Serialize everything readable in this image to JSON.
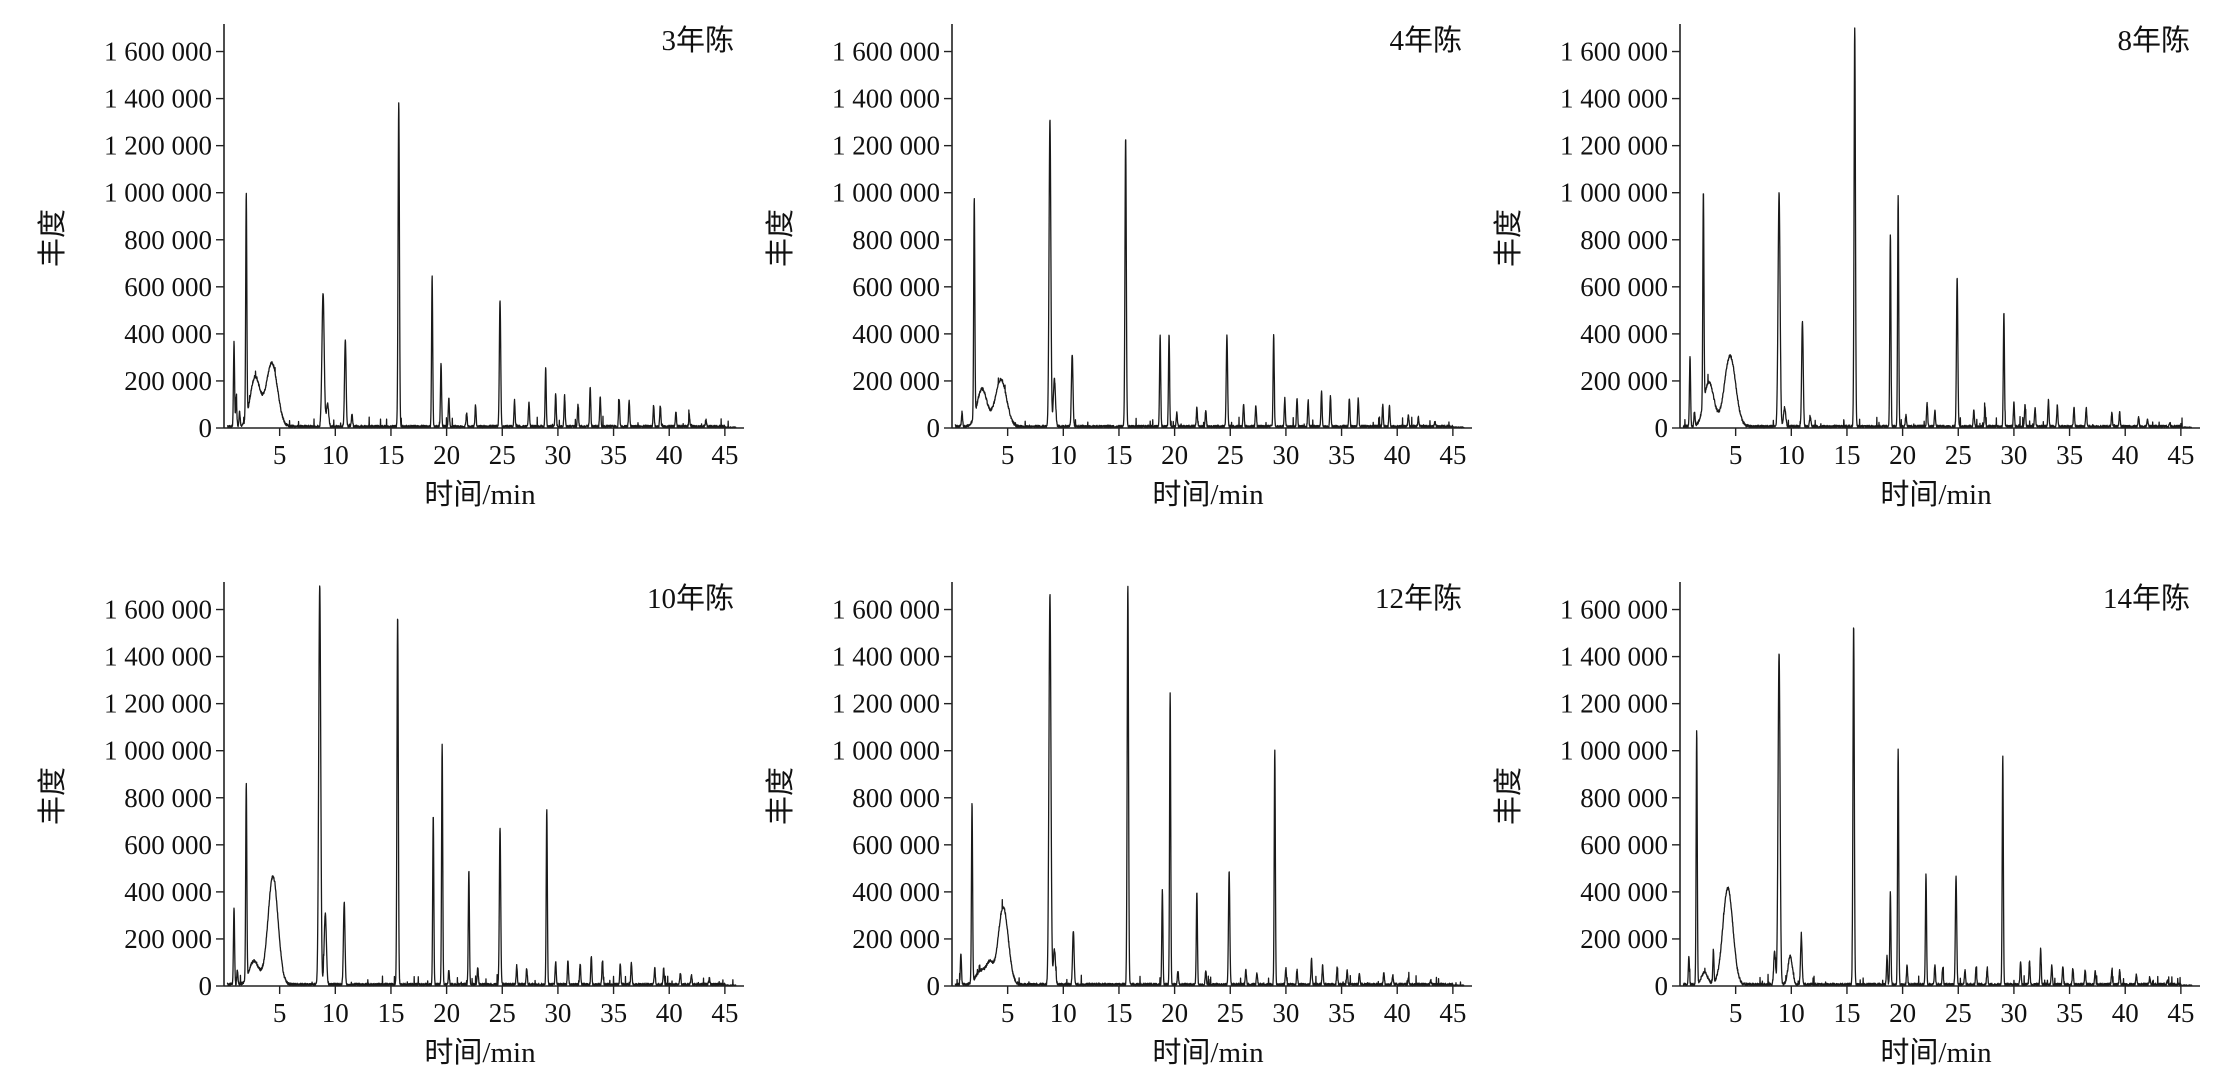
{
  "chart_data": [
    {
      "type": "line",
      "title": "3年陈",
      "xlabel": "时间/min",
      "ylabel": "丰度",
      "xlim": [
        0,
        46
      ],
      "ylim": [
        0,
        1700000
      ],
      "xticks": [
        5,
        10,
        15,
        20,
        25,
        30,
        35,
        40,
        45
      ],
      "xtick_labels": [
        "5",
        "10",
        "15",
        "20",
        "25",
        "30",
        "35",
        "40",
        "45"
      ],
      "yticks": [
        0,
        200000,
        400000,
        600000,
        800000,
        1000000,
        1200000,
        1400000,
        1600000
      ],
      "ytick_labels": [
        "0",
        "200 000",
        "400 000",
        "600 000",
        "800 000",
        "1 000 000",
        "1 200 000",
        "1 400 000",
        "1 600 000"
      ],
      "peaks": [
        [
          0.9,
          360000,
          0.05
        ],
        [
          1.1,
          130000,
          0.05
        ],
        [
          1.4,
          60000,
          0.05
        ],
        [
          2.0,
          950000,
          0.05
        ],
        [
          2.8,
          210000,
          0.45
        ],
        [
          4.3,
          270000,
          0.5
        ],
        [
          8.9,
          570000,
          0.1
        ],
        [
          9.3,
          100000,
          0.1
        ],
        [
          10.9,
          370000,
          0.07
        ],
        [
          11.5,
          50000,
          0.06
        ],
        [
          15.7,
          1380000,
          0.06
        ],
        [
          18.7,
          640000,
          0.05
        ],
        [
          19.5,
          270000,
          0.05
        ],
        [
          20.2,
          120000,
          0.05
        ],
        [
          21.8,
          60000,
          0.05
        ],
        [
          22.6,
          90000,
          0.05
        ],
        [
          24.8,
          540000,
          0.06
        ],
        [
          26.1,
          110000,
          0.05
        ],
        [
          27.4,
          100000,
          0.05
        ],
        [
          28.9,
          250000,
          0.05
        ],
        [
          29.8,
          140000,
          0.05
        ],
        [
          30.6,
          130000,
          0.05
        ],
        [
          31.8,
          90000,
          0.05
        ],
        [
          32.9,
          170000,
          0.05
        ],
        [
          33.8,
          130000,
          0.05
        ],
        [
          35.5,
          120000,
          0.05
        ],
        [
          36.4,
          110000,
          0.05
        ],
        [
          38.6,
          90000,
          0.05
        ],
        [
          39.2,
          90000,
          0.05
        ],
        [
          40.6,
          60000,
          0.05
        ],
        [
          41.8,
          50000,
          0.05
        ],
        [
          43.3,
          30000,
          0.05
        ]
      ]
    },
    {
      "type": "line",
      "title": "4年陈",
      "xlabel": "时间/min",
      "ylabel": "丰度",
      "xlim": [
        0,
        46
      ],
      "ylim": [
        0,
        1700000
      ],
      "xticks": [
        5,
        10,
        15,
        20,
        25,
        30,
        35,
        40,
        45
      ],
      "xtick_labels": [
        "5",
        "10",
        "15",
        "20",
        "25",
        "30",
        "35",
        "40",
        "45"
      ],
      "yticks": [
        0,
        200000,
        400000,
        600000,
        800000,
        1000000,
        1200000,
        1400000,
        1600000
      ],
      "ytick_labels": [
        "0",
        "200 000",
        "400 000",
        "600 000",
        "800 000",
        "1 000 000",
        "1 200 000",
        "1 400 000",
        "1 600 000"
      ],
      "peaks": [
        [
          0.9,
          60000,
          0.05
        ],
        [
          2.0,
          930000,
          0.05
        ],
        [
          2.7,
          160000,
          0.45
        ],
        [
          4.4,
          200000,
          0.5
        ],
        [
          8.8,
          1310000,
          0.08
        ],
        [
          9.2,
          200000,
          0.1
        ],
        [
          10.8,
          310000,
          0.07
        ],
        [
          15.6,
          1230000,
          0.06
        ],
        [
          18.7,
          390000,
          0.05
        ],
        [
          19.5,
          390000,
          0.05
        ],
        [
          20.2,
          60000,
          0.05
        ],
        [
          22.0,
          80000,
          0.05
        ],
        [
          22.8,
          70000,
          0.05
        ],
        [
          24.7,
          390000,
          0.06
        ],
        [
          26.2,
          100000,
          0.05
        ],
        [
          27.3,
          90000,
          0.05
        ],
        [
          28.9,
          390000,
          0.05
        ],
        [
          29.9,
          120000,
          0.05
        ],
        [
          31.0,
          120000,
          0.05
        ],
        [
          32.0,
          110000,
          0.05
        ],
        [
          33.2,
          150000,
          0.05
        ],
        [
          34.0,
          130000,
          0.05
        ],
        [
          35.7,
          120000,
          0.05
        ],
        [
          36.5,
          120000,
          0.05
        ],
        [
          38.7,
          90000,
          0.05
        ],
        [
          39.3,
          90000,
          0.05
        ],
        [
          41.0,
          50000,
          0.05
        ],
        [
          41.9,
          40000,
          0.05
        ],
        [
          43.4,
          20000,
          0.05
        ]
      ]
    },
    {
      "type": "line",
      "title": "8年陈",
      "xlabel": "时间/min",
      "ylabel": "丰度",
      "xlim": [
        0,
        46
      ],
      "ylim": [
        0,
        1700000
      ],
      "xticks": [
        5,
        10,
        15,
        20,
        25,
        30,
        35,
        40,
        45
      ],
      "xtick_labels": [
        "5",
        "10",
        "15",
        "20",
        "25",
        "30",
        "35",
        "40",
        "45"
      ],
      "yticks": [
        0,
        200000,
        400000,
        600000,
        800000,
        1000000,
        1200000,
        1400000,
        1600000
      ],
      "ytick_labels": [
        "0",
        "200 000",
        "400 000",
        "600 000",
        "800 000",
        "1 000 000",
        "1 200 000",
        "1 400 000",
        "1 600 000"
      ],
      "peaks": [
        [
          0.9,
          300000,
          0.05
        ],
        [
          1.3,
          60000,
          0.05
        ],
        [
          2.1,
          900000,
          0.05
        ],
        [
          2.6,
          190000,
          0.45
        ],
        [
          4.5,
          300000,
          0.5
        ],
        [
          8.9,
          990000,
          0.09
        ],
        [
          9.4,
          80000,
          0.1
        ],
        [
          11.0,
          450000,
          0.07
        ],
        [
          11.7,
          40000,
          0.06
        ],
        [
          15.7,
          1700000,
          0.06
        ],
        [
          18.9,
          820000,
          0.05
        ],
        [
          19.6,
          980000,
          0.05
        ],
        [
          20.3,
          50000,
          0.05
        ],
        [
          22.2,
          100000,
          0.05
        ],
        [
          22.9,
          70000,
          0.05
        ],
        [
          24.9,
          640000,
          0.06
        ],
        [
          26.4,
          70000,
          0.05
        ],
        [
          27.4,
          80000,
          0.05
        ],
        [
          29.1,
          490000,
          0.05
        ],
        [
          30.0,
          100000,
          0.05
        ],
        [
          31.0,
          90000,
          0.05
        ],
        [
          31.9,
          80000,
          0.05
        ],
        [
          33.1,
          110000,
          0.05
        ],
        [
          33.9,
          90000,
          0.05
        ],
        [
          35.4,
          80000,
          0.05
        ],
        [
          36.5,
          80000,
          0.05
        ],
        [
          38.8,
          60000,
          0.05
        ],
        [
          39.5,
          60000,
          0.05
        ],
        [
          41.2,
          40000,
          0.05
        ],
        [
          42.0,
          30000,
          0.05
        ],
        [
          44.0,
          20000,
          0.05
        ]
      ]
    },
    {
      "type": "line",
      "title": "10年陈",
      "xlabel": "时间/min",
      "ylabel": "丰度",
      "xlim": [
        0,
        46
      ],
      "ylim": [
        0,
        1700000
      ],
      "xticks": [
        5,
        10,
        15,
        20,
        25,
        30,
        35,
        40,
        45
      ],
      "xtick_labels": [
        "5",
        "10",
        "15",
        "20",
        "25",
        "30",
        "35",
        "40",
        "45"
      ],
      "yticks": [
        0,
        200000,
        400000,
        600000,
        800000,
        1000000,
        1200000,
        1400000,
        1600000
      ],
      "ytick_labels": [
        "0",
        "200 000",
        "400 000",
        "600 000",
        "800 000",
        "1 000 000",
        "1 200 000",
        "1 400 000",
        "1 600 000"
      ],
      "peaks": [
        [
          0.9,
          330000,
          0.05
        ],
        [
          1.2,
          60000,
          0.05
        ],
        [
          2.0,
          830000,
          0.05
        ],
        [
          2.7,
          100000,
          0.45
        ],
        [
          4.4,
          460000,
          0.45
        ],
        [
          8.6,
          1700000,
          0.09
        ],
        [
          9.1,
          300000,
          0.1
        ],
        [
          10.8,
          350000,
          0.07
        ],
        [
          15.6,
          1570000,
          0.06
        ],
        [
          18.8,
          720000,
          0.05
        ],
        [
          19.6,
          1020000,
          0.05
        ],
        [
          20.2,
          60000,
          0.05
        ],
        [
          22.0,
          480000,
          0.05
        ],
        [
          22.8,
          70000,
          0.05
        ],
        [
          24.8,
          670000,
          0.06
        ],
        [
          26.3,
          80000,
          0.05
        ],
        [
          27.2,
          70000,
          0.05
        ],
        [
          29.0,
          750000,
          0.05
        ],
        [
          29.8,
          100000,
          0.05
        ],
        [
          30.9,
          100000,
          0.05
        ],
        [
          32.0,
          90000,
          0.05
        ],
        [
          33.0,
          120000,
          0.05
        ],
        [
          34.0,
          100000,
          0.05
        ],
        [
          35.6,
          90000,
          0.05
        ],
        [
          36.6,
          90000,
          0.05
        ],
        [
          38.7,
          70000,
          0.05
        ],
        [
          39.5,
          70000,
          0.05
        ],
        [
          41.0,
          50000,
          0.05
        ],
        [
          42.0,
          40000,
          0.05
        ],
        [
          43.6,
          30000,
          0.05
        ]
      ]
    },
    {
      "type": "line",
      "title": "12年陈",
      "xlabel": "时间/min",
      "ylabel": "丰度",
      "xlim": [
        0,
        46
      ],
      "ylim": [
        0,
        1700000
      ],
      "xticks": [
        5,
        10,
        15,
        20,
        25,
        30,
        35,
        40,
        45
      ],
      "xtick_labels": [
        "5",
        "10",
        "15",
        "20",
        "25",
        "30",
        "35",
        "40",
        "45"
      ],
      "yticks": [
        0,
        200000,
        400000,
        600000,
        800000,
        1000000,
        1200000,
        1400000,
        1600000
      ],
      "ytick_labels": [
        "0",
        "200 000",
        "400 000",
        "600 000",
        "800 000",
        "1 000 000",
        "1 200 000",
        "1 400 000",
        "1 600 000"
      ],
      "peaks": [
        [
          0.8,
          130000,
          0.05
        ],
        [
          1.8,
          760000,
          0.05
        ],
        [
          2.6,
          60000,
          0.45
        ],
        [
          3.4,
          80000,
          0.3
        ],
        [
          4.6,
          330000,
          0.45
        ],
        [
          8.8,
          1660000,
          0.09
        ],
        [
          9.2,
          150000,
          0.1
        ],
        [
          10.9,
          230000,
          0.07
        ],
        [
          15.8,
          1700000,
          0.06
        ],
        [
          18.9,
          400000,
          0.05
        ],
        [
          19.6,
          1240000,
          0.05
        ],
        [
          20.3,
          60000,
          0.05
        ],
        [
          22.0,
          390000,
          0.05
        ],
        [
          22.8,
          60000,
          0.05
        ],
        [
          24.9,
          480000,
          0.06
        ],
        [
          26.4,
          60000,
          0.05
        ],
        [
          27.4,
          50000,
          0.05
        ],
        [
          29.0,
          1000000,
          0.05
        ],
        [
          30.0,
          70000,
          0.05
        ],
        [
          31.0,
          60000,
          0.05
        ],
        [
          32.3,
          110000,
          0.05
        ],
        [
          33.3,
          80000,
          0.05
        ],
        [
          34.6,
          70000,
          0.05
        ],
        [
          35.5,
          60000,
          0.05
        ],
        [
          36.6,
          50000,
          0.05
        ],
        [
          38.8,
          50000,
          0.05
        ],
        [
          39.6,
          40000,
          0.05
        ],
        [
          41.0,
          30000,
          0.05
        ],
        [
          43.0,
          20000,
          0.05
        ]
      ]
    },
    {
      "type": "line",
      "title": "14年陈",
      "xlabel": "时间/min",
      "ylabel": "丰度",
      "xlim": [
        0,
        46
      ],
      "ylim": [
        0,
        1700000
      ],
      "xticks": [
        5,
        10,
        15,
        20,
        25,
        30,
        35,
        40,
        45
      ],
      "xtick_labels": [
        "5",
        "10",
        "15",
        "20",
        "25",
        "30",
        "35",
        "40",
        "45"
      ],
      "yticks": [
        0,
        200000,
        400000,
        600000,
        800000,
        1000000,
        1200000,
        1400000,
        1600000
      ],
      "ytick_labels": [
        "0",
        "200 000",
        "400 000",
        "600 000",
        "800 000",
        "1 000 000",
        "1 200 000",
        "1 400 000",
        "1 600 000"
      ],
      "peaks": [
        [
          0.8,
          120000,
          0.05
        ],
        [
          1.5,
          1080000,
          0.05
        ],
        [
          2.2,
          50000,
          0.3
        ],
        [
          3.0,
          140000,
          0.05
        ],
        [
          4.3,
          410000,
          0.45
        ],
        [
          8.5,
          140000,
          0.08
        ],
        [
          8.9,
          1410000,
          0.09
        ],
        [
          9.9,
          120000,
          0.2
        ],
        [
          10.9,
          200000,
          0.07
        ],
        [
          15.6,
          1530000,
          0.06
        ],
        [
          18.6,
          120000,
          0.05
        ],
        [
          18.9,
          390000,
          0.05
        ],
        [
          19.6,
          1000000,
          0.05
        ],
        [
          20.4,
          80000,
          0.05
        ],
        [
          22.1,
          470000,
          0.05
        ],
        [
          22.9,
          80000,
          0.05
        ],
        [
          23.6,
          70000,
          0.05
        ],
        [
          24.8,
          460000,
          0.06
        ],
        [
          25.6,
          60000,
          0.05
        ],
        [
          26.6,
          70000,
          0.05
        ],
        [
          27.6,
          70000,
          0.05
        ],
        [
          29.0,
          970000,
          0.05
        ],
        [
          30.6,
          100000,
          0.05
        ],
        [
          31.4,
          100000,
          0.05
        ],
        [
          32.4,
          150000,
          0.05
        ],
        [
          33.4,
          80000,
          0.05
        ],
        [
          34.4,
          80000,
          0.05
        ],
        [
          35.3,
          70000,
          0.05
        ],
        [
          36.4,
          60000,
          0.05
        ],
        [
          37.3,
          60000,
          0.05
        ],
        [
          38.8,
          60000,
          0.05
        ],
        [
          39.5,
          60000,
          0.05
        ],
        [
          41.0,
          40000,
          0.05
        ],
        [
          42.2,
          30000,
          0.05
        ],
        [
          43.8,
          20000,
          0.05
        ]
      ]
    }
  ]
}
